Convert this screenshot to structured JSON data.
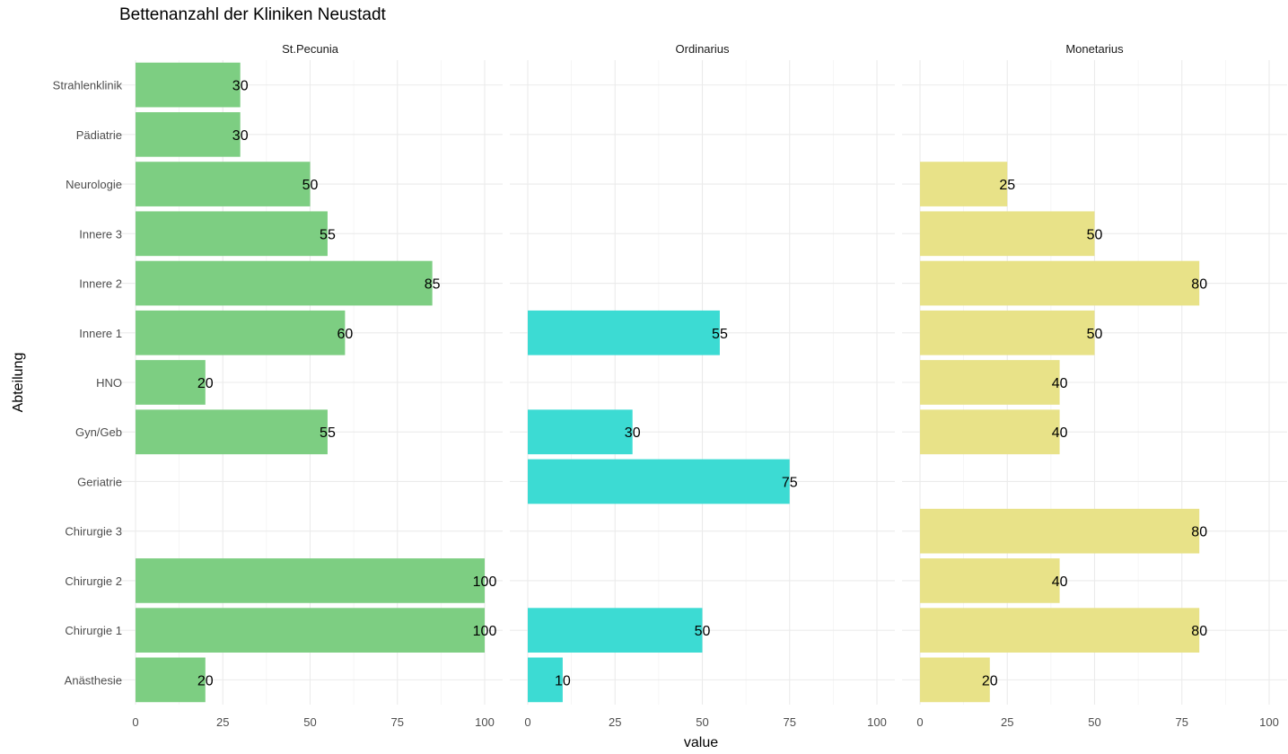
{
  "chart_data": {
    "type": "bar",
    "orientation": "horizontal",
    "title": "Bettenanzahl der Kliniken Neustadt",
    "xlabel": "value",
    "ylabel": "Abteilung",
    "xlim": [
      0,
      100
    ],
    "x_ticks": [
      "0",
      "25",
      "50",
      "75",
      "100"
    ],
    "grid": true,
    "legend": "none",
    "categories": [
      "Anästhesie",
      "Chirurgie 1",
      "Chirurgie 2",
      "Chirurgie 3",
      "Geriatrie",
      "Gyn/Geb",
      "HNO",
      "Innere 1",
      "Innere 2",
      "Innere 3",
      "Neurologie",
      "Pädiatrie",
      "Strahlenklinik"
    ],
    "series": [
      {
        "name": "St.Pecunia",
        "color": "#7dce82",
        "values": [
          20,
          100,
          100,
          null,
          null,
          55,
          20,
          60,
          85,
          55,
          50,
          30,
          30
        ]
      },
      {
        "name": "Ordinarius",
        "color": "#3cdbd3",
        "values": [
          10,
          50,
          null,
          null,
          75,
          30,
          null,
          55,
          null,
          null,
          null,
          null,
          null
        ]
      },
      {
        "name": "Monetarius",
        "color": "#e8e288",
        "values": [
          20,
          80,
          40,
          80,
          null,
          40,
          40,
          50,
          80,
          50,
          25,
          null,
          null
        ]
      }
    ]
  }
}
